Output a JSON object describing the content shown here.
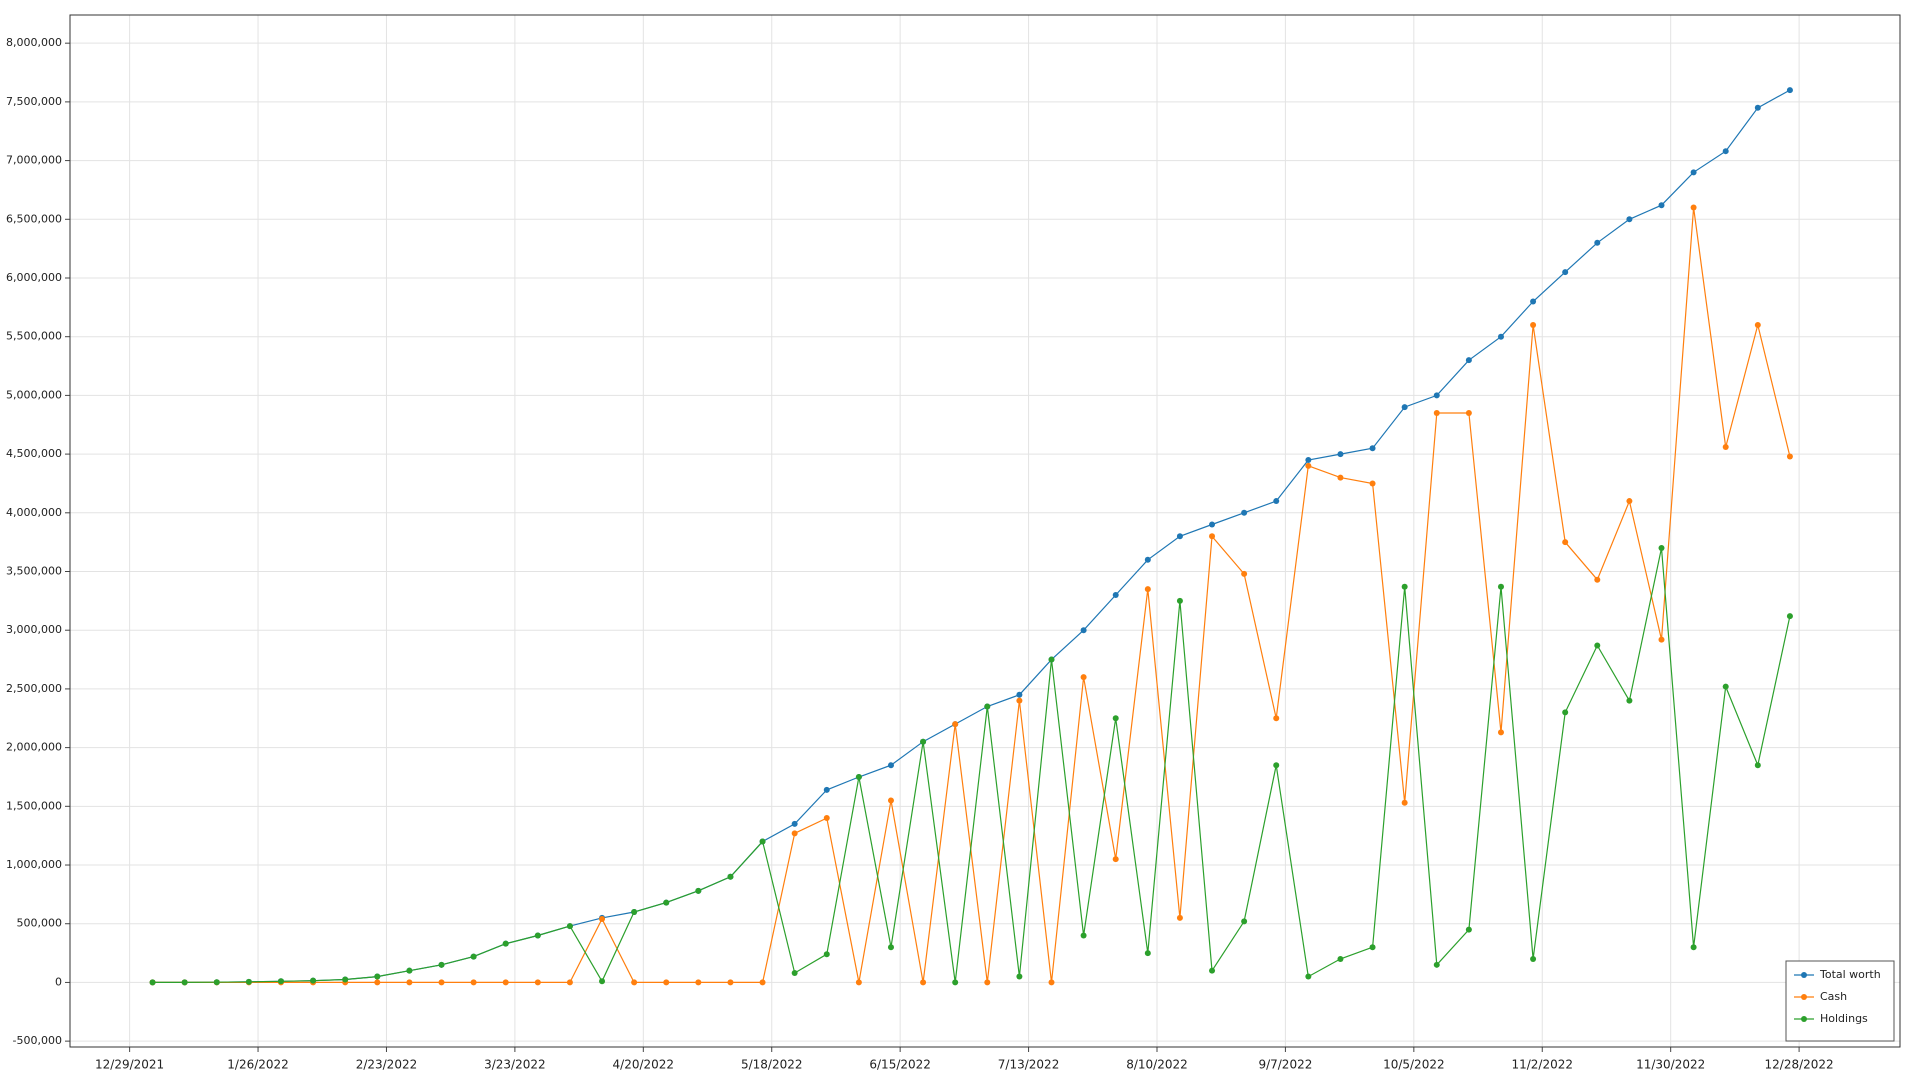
{
  "chart_data": {
    "type": "line",
    "x": [
      "1/3/2022",
      "1/10/2022",
      "1/17/2022",
      "1/24/2022",
      "1/31/2022",
      "2/7/2022",
      "2/14/2022",
      "2/21/2022",
      "2/28/2022",
      "3/7/2022",
      "3/14/2022",
      "3/21/2022",
      "3/28/2022",
      "4/4/2022",
      "4/11/2022",
      "4/18/2022",
      "4/25/2022",
      "5/2/2022",
      "5/9/2022",
      "5/16/2022",
      "5/23/2022",
      "5/30/2022",
      "6/6/2022",
      "6/13/2022",
      "6/20/2022",
      "6/27/2022",
      "7/4/2022",
      "7/11/2022",
      "7/18/2022",
      "7/25/2022",
      "8/1/2022",
      "8/8/2022",
      "8/15/2022",
      "8/22/2022",
      "8/29/2022",
      "9/5/2022",
      "9/12/2022",
      "9/19/2022",
      "9/26/2022",
      "10/3/2022",
      "10/10/2022",
      "10/17/2022",
      "10/24/2022",
      "10/31/2022",
      "11/7/2022",
      "11/14/2022",
      "11/21/2022",
      "11/28/2022",
      "12/5/2022",
      "12/12/2022",
      "12/19/2022",
      "12/26/2022"
    ],
    "series": [
      {
        "name": "Total worth",
        "color": "#1f77b4",
        "values": [
          0,
          0,
          2000,
          5000,
          10000,
          15000,
          25000,
          50000,
          100000,
          150000,
          220000,
          330000,
          400000,
          480000,
          550000,
          600000,
          680000,
          780000,
          900000,
          1200000,
          1350000,
          1640000,
          1750000,
          1850000,
          2050000,
          2200000,
          2350000,
          2450000,
          2750000,
          3000000,
          3300000,
          3600000,
          3800000,
          3900000,
          4000000,
          4100000,
          4450000,
          4500000,
          4550000,
          4900000,
          5000000,
          5300000,
          5500000,
          5800000,
          6050000,
          6300000,
          6500000,
          6620000,
          6900000,
          7080000,
          7450000,
          7600000
        ]
      },
      {
        "name": "Cash",
        "color": "#ff7f0e",
        "values": [
          0,
          0,
          0,
          0,
          0,
          0,
          0,
          0,
          0,
          0,
          0,
          0,
          0,
          0,
          540000,
          0,
          0,
          0,
          0,
          0,
          1270000,
          1400000,
          0,
          1550000,
          0,
          2200000,
          0,
          2400000,
          0,
          2600000,
          1050000,
          3350000,
          550000,
          3800000,
          3480000,
          2250000,
          4400000,
          4300000,
          4250000,
          1530000,
          4850000,
          4850000,
          2130000,
          5600000,
          3750000,
          3430000,
          4100000,
          2920000,
          6600000,
          4560000,
          5600000,
          4480000
        ]
      },
      {
        "name": "Holdings",
        "color": "#2ca02c",
        "values": [
          0,
          0,
          2000,
          5000,
          10000,
          15000,
          25000,
          50000,
          100000,
          150000,
          220000,
          330000,
          400000,
          480000,
          10000,
          600000,
          680000,
          780000,
          900000,
          1200000,
          80000,
          240000,
          1750000,
          300000,
          2050000,
          0,
          2350000,
          50000,
          2750000,
          400000,
          2250000,
          250000,
          3250000,
          100000,
          520000,
          1850000,
          50000,
          200000,
          300000,
          3370000,
          150000,
          450000,
          3370000,
          200000,
          2300000,
          2870000,
          2400000,
          3700000,
          300000,
          2520000,
          1850000,
          3120000
        ]
      }
    ],
    "xlim": [
      "12/16/2021",
      "1/19/2023"
    ],
    "xticks": [
      "12/29/2021",
      "1/26/2022",
      "2/23/2022",
      "3/23/2022",
      "4/20/2022",
      "5/18/2022",
      "6/15/2022",
      "7/13/2022",
      "8/10/2022",
      "9/7/2022",
      "10/5/2022",
      "11/2/2022",
      "11/30/2022",
      "12/28/2022"
    ],
    "ylim": [
      -550000,
      8240000
    ],
    "yticks": [
      {
        "value": -500000,
        "label": "-500,000"
      },
      0,
      {
        "value": 500000,
        "label": "500,000"
      },
      {
        "value": 1000000,
        "label": "1,000,000"
      },
      {
        "value": 1500000,
        "label": "1,500,000"
      },
      {
        "value": 2000000,
        "label": "2,000,000"
      },
      {
        "value": 2500000,
        "label": "2,500,000"
      },
      {
        "value": 3000000,
        "label": "3,000,000"
      },
      {
        "value": 3500000,
        "label": "3,500,000"
      },
      {
        "value": 4000000,
        "label": "4,000,000"
      },
      {
        "value": 4500000,
        "label": "4,500,000"
      },
      {
        "value": 5000000,
        "label": "5,000,000"
      },
      {
        "value": 5500000,
        "label": "5,500,000"
      },
      {
        "value": 6000000,
        "label": "6,000,000"
      },
      {
        "value": 6500000,
        "label": "6,500,000"
      },
      {
        "value": 7000000,
        "label": "7,000,000"
      },
      {
        "value": 7500000,
        "label": "7,500,000"
      },
      {
        "value": 8000000,
        "label": "8,000,000"
      }
    ],
    "grid": true,
    "legend": "lower right"
  }
}
